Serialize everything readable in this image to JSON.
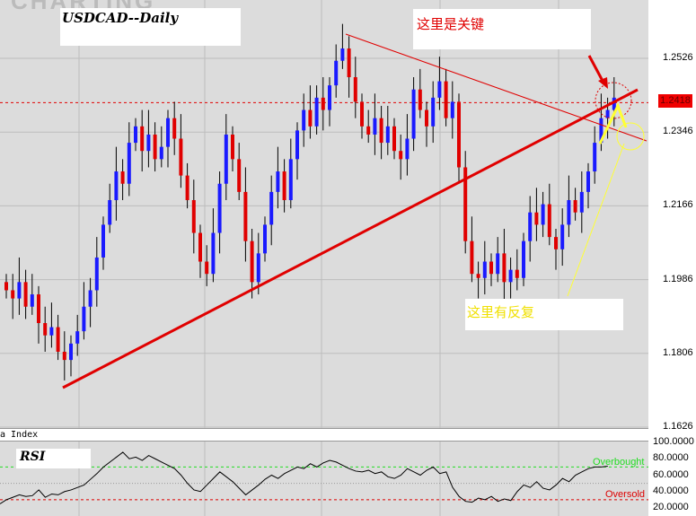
{
  "watermark": "CHARTING",
  "title": "USDCAD--Daily",
  "annotation_key": "这里是关键",
  "annotation_repeat": "这里有反复",
  "index_label": "a Index",
  "rsi_label": "RSI",
  "current_price": "1.2418",
  "colors": {
    "up": "#1a1aff",
    "down": "#e00000",
    "trendline": "#e00000",
    "annotation_yellow": "#ffff33",
    "overbought": "#22dd22",
    "oversold": "#dd0000"
  },
  "chart_data": [
    {
      "type": "candlestick",
      "title": "USDCAD--Daily",
      "ylim": [
        1.1626,
        1.2706
      ],
      "yticks": [
        "1.2526",
        "1.2346",
        "1.2166",
        "1.1986",
        "1.1806",
        "1.1626"
      ],
      "current_price": 1.2418,
      "closes": [
        1.196,
        1.194,
        1.198,
        1.192,
        1.195,
        1.188,
        1.185,
        1.187,
        1.181,
        1.179,
        1.183,
        1.186,
        1.192,
        1.196,
        1.204,
        1.212,
        1.218,
        1.225,
        1.222,
        1.232,
        1.236,
        1.23,
        1.234,
        1.228,
        1.231,
        1.238,
        1.233,
        1.224,
        1.218,
        1.21,
        1.203,
        1.2,
        1.21,
        1.222,
        1.234,
        1.228,
        1.22,
        1.208,
        1.198,
        1.205,
        1.212,
        1.22,
        1.225,
        1.218,
        1.228,
        1.235,
        1.24,
        1.236,
        1.243,
        1.24,
        1.246,
        1.252,
        1.255,
        1.248,
        1.242,
        1.236,
        1.234,
        1.238,
        1.232,
        1.236,
        1.23,
        1.228,
        1.233,
        1.245,
        1.24,
        1.236,
        1.243,
        1.247,
        1.238,
        1.242,
        1.226,
        1.208,
        1.2,
        1.199,
        1.203,
        1.2,
        1.205,
        1.198,
        1.201,
        1.199,
        1.208,
        1.215,
        1.212,
        1.217,
        1.209,
        1.206,
        1.212,
        1.218,
        1.215,
        1.22,
        1.225,
        1.232,
        1.238,
        1.24,
        1.243
      ]
    },
    {
      "type": "line",
      "title": "RSI",
      "ylim": [
        10,
        100
      ],
      "yticks": [
        "100.0000",
        "80.0000",
        "60.0000",
        "40.0000",
        "20.0000"
      ],
      "overbought": {
        "label": "Overbought",
        "value": 70
      },
      "oversold": {
        "label": "Oversold",
        "value": 30
      },
      "values": [
        25,
        30,
        33,
        36,
        34,
        35,
        42,
        33,
        37,
        36,
        40,
        42,
        45,
        48,
        55,
        62,
        70,
        76,
        82,
        88,
        80,
        82,
        78,
        84,
        80,
        76,
        72,
        68,
        60,
        50,
        42,
        40,
        48,
        56,
        64,
        58,
        52,
        44,
        36,
        42,
        48,
        55,
        60,
        56,
        62,
        66,
        70,
        68,
        74,
        70,
        75,
        78,
        76,
        72,
        68,
        65,
        64,
        66,
        62,
        64,
        58,
        56,
        60,
        68,
        64,
        60,
        66,
        70,
        62,
        64,
        45,
        34,
        28,
        27,
        32,
        30,
        34,
        28,
        31,
        29,
        40,
        48,
        45,
        52,
        44,
        42,
        48,
        56,
        52,
        60,
        64,
        68,
        70,
        70,
        71
      ]
    }
  ]
}
